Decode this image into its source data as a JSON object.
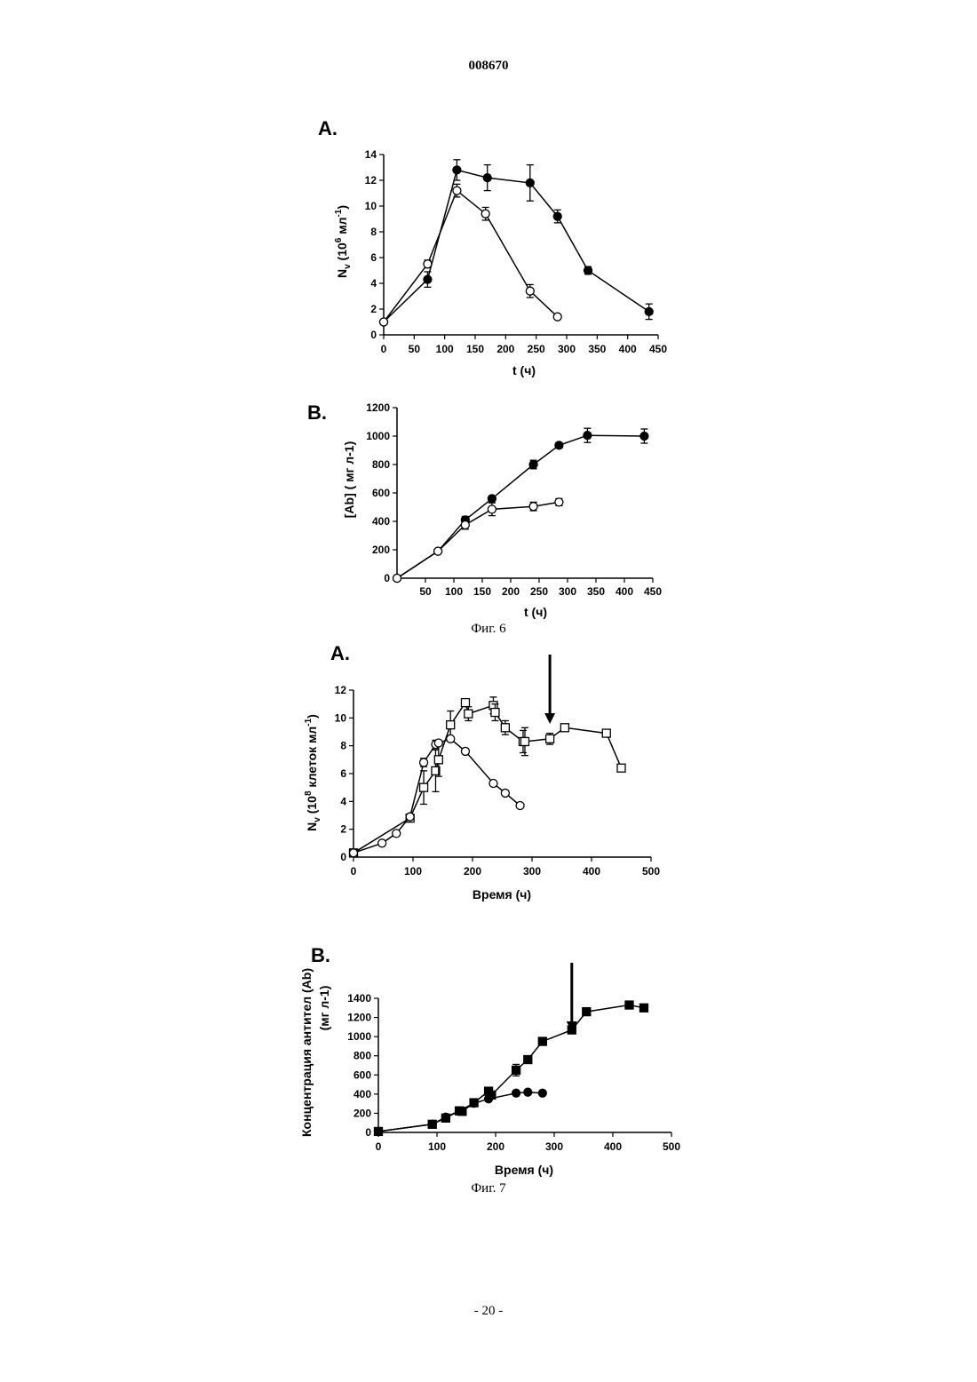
{
  "document": {
    "number": "008670",
    "fig6_caption": "Фиг. 6",
    "fig7_caption": "Фиг. 7",
    "page_number": "- 20 -"
  },
  "colors": {
    "ink": "#000000",
    "paper": "#ffffff"
  },
  "chart_data": [
    {
      "id": "fig6-A",
      "type": "line",
      "panel_label": "A.",
      "xlabel": "t (ч)",
      "ylabel_main": "N",
      "ylabel_sub": "v",
      "ylabel_rest": " (10",
      "ylabel_sup": "6",
      "ylabel_tail": " мл",
      "ylabel_sup2": "-1",
      "ylabel_close": ")",
      "xlim": [
        0,
        450
      ],
      "ylim": [
        0,
        14
      ],
      "xticks": [
        0,
        50,
        100,
        150,
        200,
        250,
        300,
        350,
        400,
        450
      ],
      "yticks": [
        0,
        2,
        4,
        6,
        8,
        10,
        12,
        14
      ],
      "series": [
        {
          "marker": "filled-circle",
          "x": [
            0,
            72,
            120,
            170,
            240,
            285,
            335,
            435
          ],
          "y": [
            1.0,
            4.3,
            12.8,
            12.2,
            11.8,
            9.2,
            5.0,
            1.8
          ],
          "err": [
            0,
            0.6,
            0.8,
            1.0,
            1.4,
            0.5,
            0.3,
            0.6
          ]
        },
        {
          "marker": "open-circle",
          "x": [
            0,
            72,
            120,
            167,
            240,
            285
          ],
          "y": [
            1.0,
            5.5,
            11.2,
            9.4,
            3.4,
            1.4
          ],
          "err": [
            0,
            0.3,
            0.5,
            0.5,
            0.5,
            0
          ]
        }
      ]
    },
    {
      "id": "fig6-B",
      "type": "line",
      "panel_label": "B.",
      "xlabel": "t (ч)",
      "ylabel": "[Ab] (   мг л-1)",
      "xlim": [
        0,
        450
      ],
      "ylim": [
        0,
        1200
      ],
      "xticks": [
        50,
        100,
        150,
        200,
        250,
        300,
        350,
        400,
        450
      ],
      "yticks": [
        0,
        200,
        400,
        600,
        800,
        1000,
        1200
      ],
      "series": [
        {
          "marker": "filled-circle",
          "x": [
            0,
            72,
            120,
            167,
            240,
            285,
            335,
            435
          ],
          "y": [
            0,
            190,
            410,
            560,
            800,
            935,
            1005,
            1000
          ],
          "err": [
            0,
            0,
            25,
            20,
            30,
            20,
            50,
            50
          ]
        },
        {
          "marker": "open-circle",
          "x": [
            0,
            72,
            120,
            167,
            240,
            285
          ],
          "y": [
            0,
            190,
            375,
            485,
            505,
            535
          ],
          "err": [
            0,
            0,
            30,
            45,
            30,
            25
          ]
        }
      ]
    },
    {
      "id": "fig7-A",
      "type": "line",
      "panel_label": "A.",
      "xlabel": "Время (ч)",
      "ylabel_main": "N",
      "ylabel_sub": "v",
      "ylabel_rest": " (10",
      "ylabel_sup": "8",
      "ylabel_tail": " клеток  мл",
      "ylabel_sup2": "-1",
      "ylabel_close": ")",
      "xlim": [
        0,
        500
      ],
      "ylim": [
        0,
        12
      ],
      "xticks": [
        0,
        100,
        200,
        300,
        400,
        500
      ],
      "yticks": [
        0,
        2,
        4,
        6,
        8,
        10,
        12
      ],
      "arrow_x": 330,
      "series": [
        {
          "marker": "open-square",
          "x": [
            0,
            95,
            118,
            138,
            143,
            163,
            188,
            193,
            235,
            238,
            255,
            285,
            288,
            330,
            355,
            425,
            450
          ],
          "y": [
            0.3,
            2.8,
            5.0,
            6.2,
            7.0,
            9.5,
            11.1,
            10.3,
            10.9,
            10.4,
            9.3,
            8.3,
            8.3,
            8.5,
            9.3,
            8.9,
            6.4
          ],
          "err": [
            0,
            0,
            1.2,
            1.5,
            1.2,
            1.0,
            0,
            0.5,
            0.6,
            0.6,
            0.5,
            0.8,
            1.0,
            0.4,
            0,
            0,
            0
          ]
        },
        {
          "marker": "open-circle",
          "x": [
            0,
            48,
            72,
            95,
            118,
            138,
            143,
            163,
            188,
            235,
            255,
            280
          ],
          "y": [
            0.3,
            1.0,
            1.7,
            2.9,
            6.8,
            8.1,
            8.2,
            8.5,
            7.6,
            5.3,
            4.6,
            3.7
          ],
          "err": [
            0,
            0,
            0,
            0,
            0.3,
            0.3,
            0,
            0,
            0,
            0,
            0,
            0
          ]
        }
      ]
    },
    {
      "id": "fig7-B",
      "type": "line",
      "panel_label": "B.",
      "xlabel": "Время (ч)",
      "ylabel": "Концентрация антител (Ab)",
      "ylabel2": "(мг л-1)",
      "xlim": [
        0,
        500
      ],
      "ylim": [
        0,
        1400
      ],
      "xticks": [
        0,
        100,
        200,
        300,
        400,
        500
      ],
      "yticks": [
        0,
        200,
        400,
        600,
        800,
        1000,
        1200,
        1400
      ],
      "arrow_x": 330,
      "series": [
        {
          "marker": "filled-square",
          "x": [
            0,
            92,
            115,
            138,
            143,
            163,
            188,
            193,
            235,
            255,
            280,
            330,
            355,
            428,
            453
          ],
          "y": [
            10,
            85,
            150,
            225,
            220,
            310,
            430,
            390,
            650,
            760,
            950,
            1070,
            1260,
            1330,
            1300
          ],
          "err": [
            0,
            0,
            0,
            0,
            0,
            0,
            0,
            0,
            60,
            40,
            40,
            0,
            40,
            0,
            0
          ]
        },
        {
          "marker": "filled-circle",
          "x": [
            0,
            92,
            115,
            138,
            163,
            188,
            235,
            255,
            280
          ],
          "y": [
            10,
            85,
            160,
            225,
            305,
            350,
            410,
            420,
            410
          ],
          "err": [
            0,
            0,
            0,
            0,
            0,
            0,
            0,
            0,
            0
          ]
        }
      ]
    }
  ]
}
